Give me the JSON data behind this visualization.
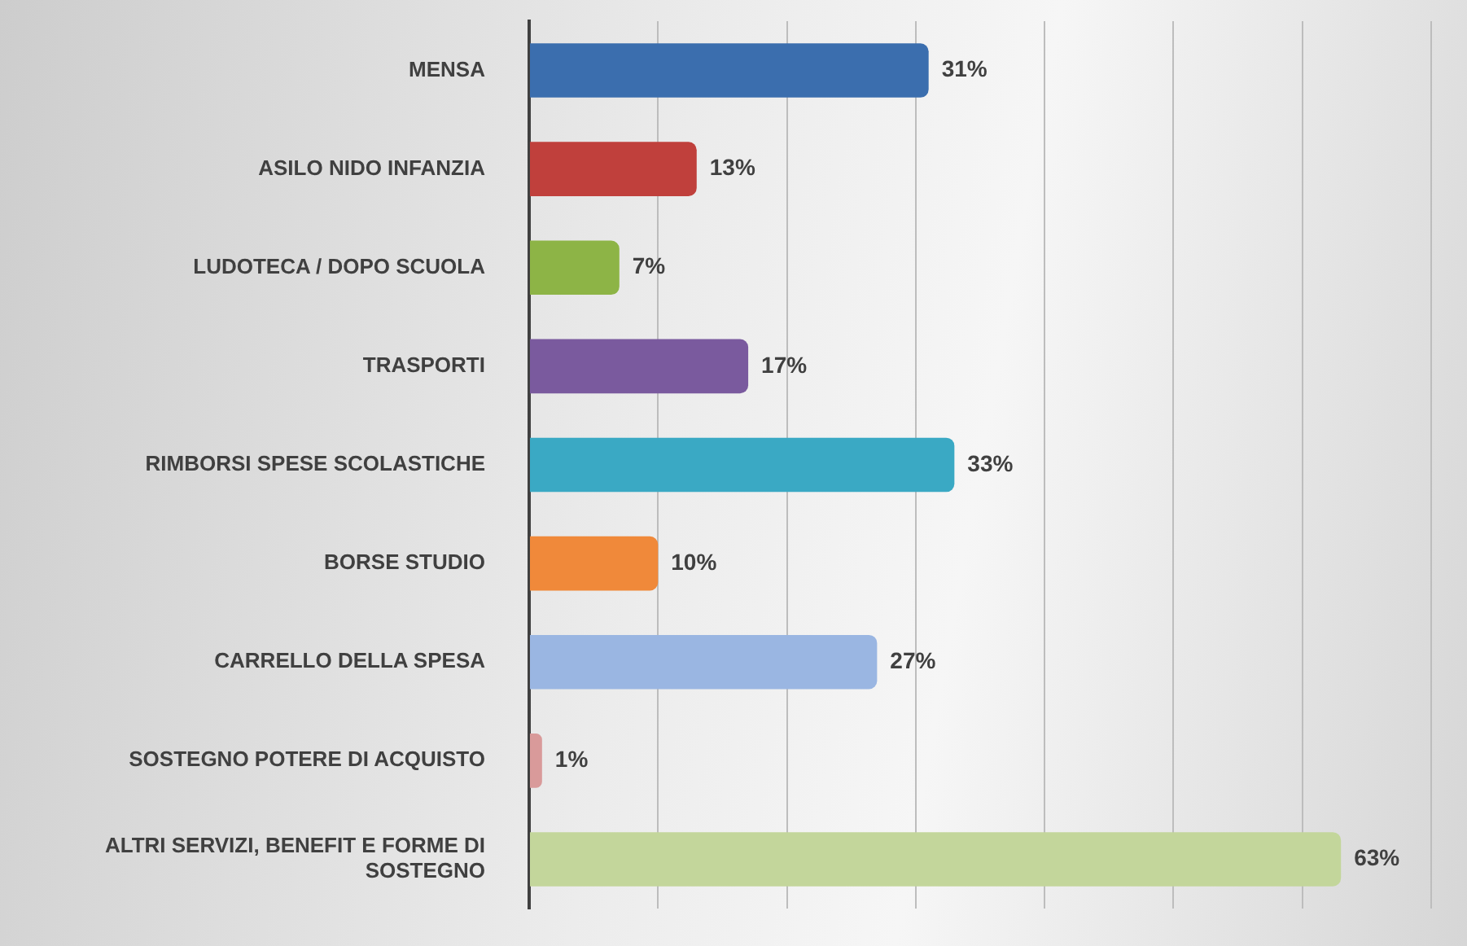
{
  "chart_data": {
    "type": "bar",
    "orientation": "horizontal",
    "categories": [
      "MENSA",
      "ASILO NIDO INFANZIA",
      "LUDOTECA / DOPO SCUOLA",
      "TRASPORTI",
      "RIMBORSI SPESE SCOLASTICHE",
      "BORSE STUDIO",
      "CARRELLO DELLA SPESA",
      "SOSTEGNO POTERE DI ACQUISTO",
      "ALTRI SERVIZI, BENEFIT E FORME DI SOSTEGNO"
    ],
    "values": [
      31,
      13,
      7,
      17,
      33,
      10,
      27,
      1,
      63
    ],
    "value_labels": [
      "31%",
      "13%",
      "7%",
      "17%",
      "33%",
      "10%",
      "27%",
      "1%",
      "63%"
    ],
    "colors": [
      "#3b6eae",
      "#c0403c",
      "#8db446",
      "#7a5a9e",
      "#3aa9c4",
      "#f0893a",
      "#9ab6e2",
      "#d99a9a",
      "#c3d69b"
    ],
    "xlim": [
      0,
      70
    ],
    "xticks": [
      {
        "value": 0,
        "label": null
      },
      {
        "value": 10,
        "label": null
      },
      {
        "value": 20,
        "label": null
      },
      {
        "value": 30,
        "label": null
      },
      {
        "value": 40,
        "label": null
      },
      {
        "value": 50,
        "label": null
      },
      {
        "value": 60,
        "label": null
      },
      {
        "value": 70,
        "label": null
      }
    ],
    "grid": "x",
    "tick_labels": "y"
  }
}
